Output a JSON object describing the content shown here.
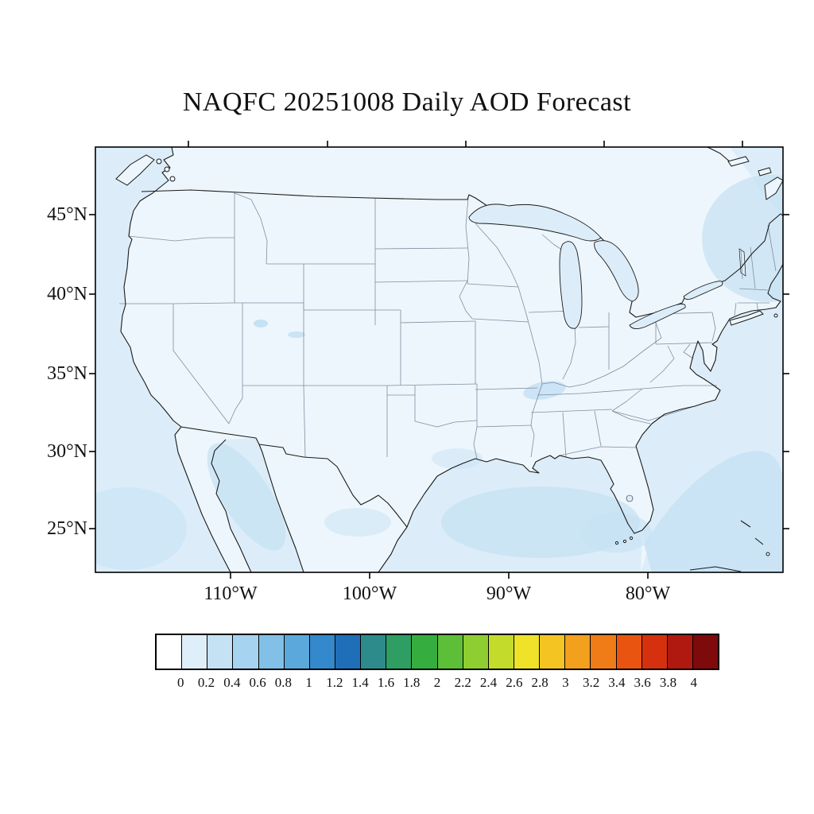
{
  "title": "NAQFC 20251008 Daily AOD Forecast",
  "axes": {
    "lat_labels": [
      "45°N",
      "40°N",
      "35°N",
      "30°N",
      "25°N"
    ],
    "lon_labels": [
      "110°W",
      "100°W",
      "90°W",
      "80°W"
    ]
  },
  "colorbar": {
    "tick_labels": [
      "0",
      "0.2",
      "0.4",
      "0.6",
      "0.8",
      "1",
      "1.2",
      "1.4",
      "1.6",
      "1.8",
      "2",
      "2.2",
      "2.4",
      "2.6",
      "2.8",
      "3",
      "3.2",
      "3.4",
      "3.6",
      "3.8",
      "4"
    ],
    "cell_colors": [
      "#FFFFFF",
      "#DEEFF9",
      "#C4E2F4",
      "#A6D3EF",
      "#83C0E7",
      "#5BA8DC",
      "#3389CB",
      "#1F6FB8",
      "#2E8B8B",
      "#2F9E63",
      "#35AE3F",
      "#5DBE38",
      "#8FCE30",
      "#C3DC2B",
      "#EFE228",
      "#F4C522",
      "#F3A01C",
      "#EF7C16",
      "#E95511",
      "#D6310F",
      "#B01910",
      "#7E0A0B"
    ]
  },
  "map_colors": {
    "land": "#EDF6FC",
    "ocean": "#DCEDF9",
    "aod_patch": "#C5E1F4",
    "coastline": "#1a1a1a",
    "state_border": "#7E8EA0"
  },
  "chart_data": {
    "type": "heatmap",
    "title": "NAQFC 20251008 Daily AOD Forecast",
    "model": "NAQFC",
    "forecast_date": "20251008",
    "variable": "Daily Aerosol Optical Depth (AOD)",
    "region": "Continental United States and adjacent waters",
    "lat_ticks_deg_n": [
      45,
      40,
      35,
      30,
      25
    ],
    "lon_ticks_deg_w": [
      110,
      100,
      90,
      80
    ],
    "colorbar_levels": [
      0,
      0.2,
      0.4,
      0.6,
      0.8,
      1,
      1.2,
      1.4,
      1.6,
      1.8,
      2,
      2.2,
      2.4,
      2.6,
      2.8,
      3,
      3.2,
      3.4,
      3.6,
      3.8,
      4
    ],
    "legend_position": "bottom",
    "field_observations": [
      {
        "area": "most of the continental US interior",
        "aod_range": [
          0,
          0.2
        ]
      },
      {
        "area": "western Atlantic offshore of the East Coast",
        "aod_range": [
          0.2,
          0.4
        ]
      },
      {
        "area": "Gulf of Mexico and Gulf of California",
        "aod_range": [
          0.2,
          0.4
        ]
      },
      {
        "area": "small scattered patches (southern Appalachians, central Colorado, south Texas/Mexico)",
        "aod_range": [
          0.2,
          0.4
        ]
      }
    ]
  }
}
